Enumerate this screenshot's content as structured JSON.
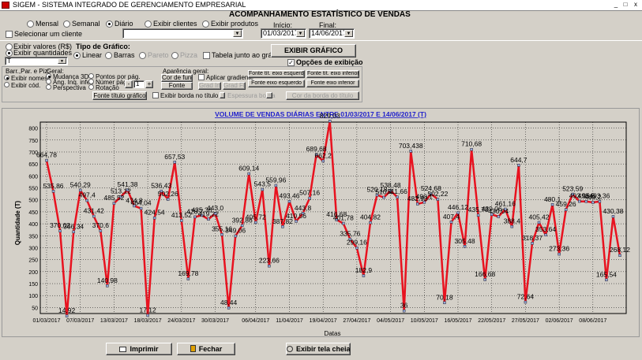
{
  "window": {
    "title": "SIGEM - SISTEMA INTEGRADO DE GERENCIAMENTO EMPRESARIAL",
    "controls": [
      "_",
      "□",
      "x"
    ]
  },
  "header": {
    "title": "ACOMPANHAMENTO ESTATÍSTICO DE VENDAS"
  },
  "period": {
    "options": [
      {
        "label": "Mensal",
        "selected": false
      },
      {
        "label": "Semanal",
        "selected": false
      },
      {
        "label": "Diário",
        "selected": true
      },
      {
        "label": "Exibir clientes",
        "selected": false
      },
      {
        "label": "Exibir produtos",
        "selected": false
      }
    ]
  },
  "client": {
    "select_label": "Selecionar um cliente",
    "value": ""
  },
  "dates": {
    "start_label": "Início:",
    "start_value": "01/03/2017",
    "end_label": "Final:",
    "end_value": "14/06/2017"
  },
  "values": {
    "show_values": "Exibir valores (R$)",
    "show_quantities": "Exibir quantidades",
    "quantities_selected": true,
    "type_value": "T"
  },
  "chart_type": {
    "label": "Tipo de Gráfico:",
    "options": [
      {
        "label": "Linear",
        "selected": true
      },
      {
        "label": "Barras",
        "selected": false
      },
      {
        "label": "Pareto",
        "selected": false
      },
      {
        "label": "Pizza",
        "selected": false
      }
    ],
    "table_label": "Tabela junto ao gráfico"
  },
  "actions": {
    "show_chart": "EXIBIR GRÁFICO",
    "display_options": "Opções de exibição",
    "display_options_checked": true
  },
  "options_panel": {
    "bar_label": "Barr.,Par. e Piz:",
    "show_names": "Exibir nomes",
    "show_code": "Exibir cód.",
    "general_label": "Geral:",
    "change_3d": "Mudança 3D",
    "angle_label": "Âng. Inq. infer.",
    "perspective": "Perspectiva",
    "points_per_day": "Pontos por pág.",
    "number_per_page": "Númer pág.",
    "rotation": "Rotação",
    "stepper_value": "1",
    "minus": "-",
    "plus": "+",
    "appearance_label": "Aparência geral:",
    "bg_color": "Cor de fundo",
    "font": "Fonte",
    "gradient": "Aplicar gradiente",
    "grad_start": "Grad Ini",
    "grad_end": "Grad Fin",
    "font_left_title": "Fonte tít. eixo esquerdo",
    "font_bottom_title": "Fonte tít. eixo inferior",
    "font_left_axis": "Fonte eixo esquerdo",
    "font_bottom_axis": "Fonte eixo inferior",
    "font_chart_title": "Fonte título gráfico",
    "border_title": "Exibir borda no título",
    "border_thickness": "Espessura borda",
    "border_color": "Cor da borda do título"
  },
  "buttons": {
    "print": "Imprimir",
    "close": "Fechar",
    "fullscreen": "Exibir tela cheia"
  },
  "colors": {
    "line": "#e8121f",
    "grid": "#000000",
    "title": "#1f1fcc",
    "panel": "#d4d0c8"
  },
  "chart_data": {
    "type": "line",
    "title": "VOLUME DE VENDAS DIÁRIAS ENTRE 01/03/2017 E 14/06/2017 (T)",
    "xlabel": "Datas",
    "ylabel": "Quantidade (T)",
    "ylim": [
      25,
      825
    ],
    "yticks": [
      50,
      100,
      150,
      200,
      250,
      300,
      350,
      400,
      450,
      500,
      550,
      600,
      650,
      700,
      750,
      800
    ],
    "xticks": [
      "01/03/2017",
      "07/03/2017",
      "13/03/2017",
      "18/03/2017",
      "24/03/2017",
      "30/03/2017",
      "06/04/2017",
      "11/04/2017",
      "19/04/2017",
      "27/04/2017",
      "04/05/2017",
      "10/05/2017",
      "16/05/2017",
      "22/05/2017",
      "27/05/2017",
      "02/06/2017",
      "08/06/2017"
    ],
    "series": [
      {
        "name": "",
        "labels": [
          "664,78",
          "535,86",
          "370,02",
          "14,92",
          "366,34",
          "540,29",
          "497,4",
          "431,42",
          "370,6",
          "140,98",
          "485,52",
          "513,12",
          "541,38",
          "474,8",
          "464,04",
          "17,12",
          "424,54",
          "536,43",
          "502,26",
          "657,53",
          "413,52",
          "169,78",
          "428,7",
          "435,36",
          "419,22",
          "443,0",
          "355,16",
          "48,44",
          "349,06",
          "392,86",
          "609,14",
          "405,72",
          "543,5",
          "223,66",
          "559,96",
          "387,82",
          "493,46",
          "410,56",
          "443,8",
          "507,16",
          "689,68",
          "662,2",
          "829,03",
          "416,68",
          "401,78",
          "335,76",
          "299,16",
          "182,9",
          "404,82",
          "520,18",
          "510,4",
          "538,48",
          "511,66",
          "36",
          "703,438",
          "482,93",
          "490,1",
          "524,68",
          "502,22",
          "70,18",
          "407,4",
          "446,12",
          "305,48",
          "710,68",
          "435,78",
          "166,68",
          "439,06",
          "430,04",
          "461,16",
          "388,4",
          "644,7",
          "72,64",
          "318,37",
          "405,42",
          "353,64",
          "480,1",
          "273,36",
          "459,26",
          "523,59",
          "493,95",
          "493,5",
          "489,2",
          "493,36",
          "165,54",
          "430,38",
          "268,12"
        ]
      }
    ]
  },
  "footer_labels": {
    "rightbottom": ""
  }
}
